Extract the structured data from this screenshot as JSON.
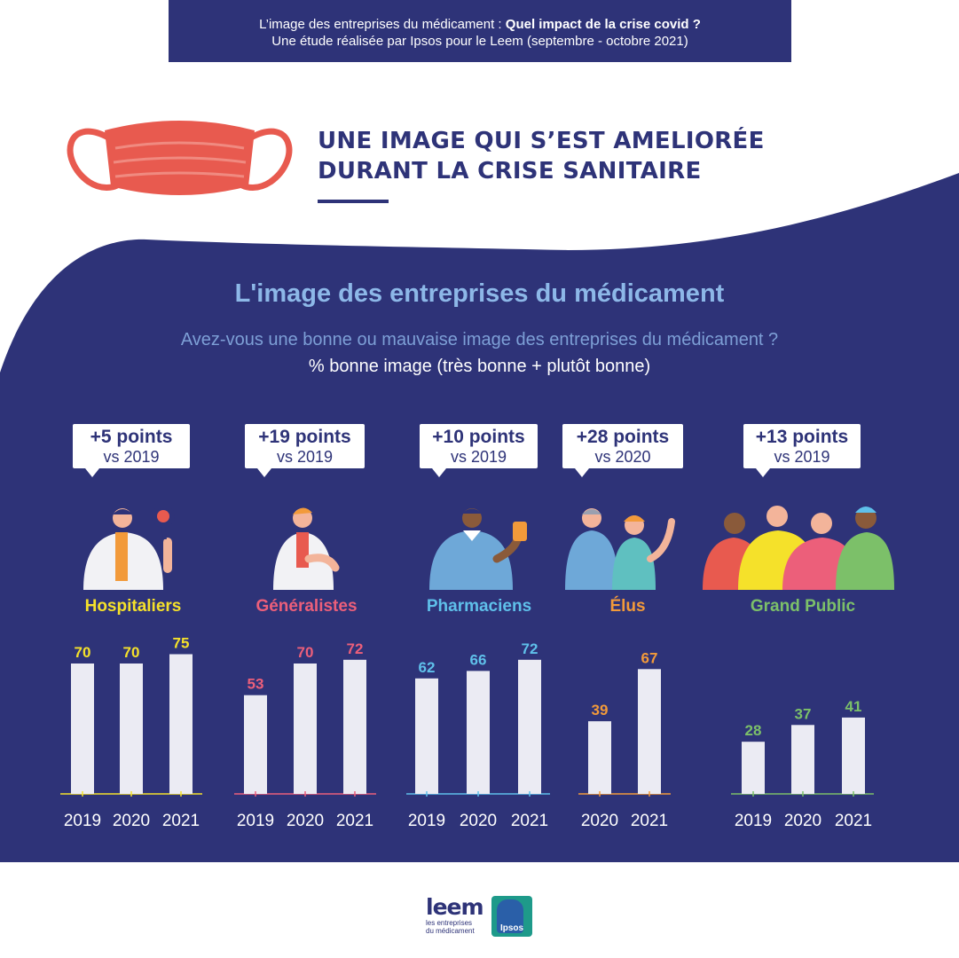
{
  "header": {
    "line1_prefix": "L’image des entreprises du médicament : ",
    "line1_bold": "Quel impact de la crise covid ?",
    "line2": "Une étude réalisée par Ipsos pour le Leem (septembre - octobre 2021)"
  },
  "headline": {
    "line1": "UNE IMAGE QUI S’EST AMELIORÉE",
    "line2": "DURANT LA CRISE SANITAIRE"
  },
  "main": {
    "title": "L'image des entreprises du médicament",
    "question": "Avez-vous une bonne ou mauvaise image des entreprises du médicament ?",
    "subtitle": "% bonne image (très bonne + plutôt bonne)"
  },
  "colors": {
    "navy": "#2e3378",
    "mask": "#e85a4f",
    "hospitaliers": "#f5e12a",
    "generalistes": "#ec5f7a",
    "pharmaciens": "#5fc0ea",
    "elus": "#f29a3a",
    "grand_public": "#7cc069"
  },
  "groups": [
    {
      "key": "hospitaliers",
      "label": "Hospitaliers",
      "delta": "+5 points",
      "vs": "vs 2019",
      "color": "#f5e12a",
      "icon": "doctor-magnifier-icon"
    },
    {
      "key": "generalistes",
      "label": "Généralistes",
      "delta": "+19 points",
      "vs": "vs 2019",
      "color": "#ec5f7a",
      "icon": "general-practitioner-icon"
    },
    {
      "key": "pharmaciens",
      "label": "Pharmaciens",
      "delta": "+10 points",
      "vs": "vs 2019",
      "color": "#5fc0ea",
      "icon": "pharmacist-icon"
    },
    {
      "key": "elus",
      "label": "Élus",
      "delta": "+28 points",
      "vs": "vs 2020",
      "color": "#f29a3a",
      "icon": "elected-officials-icon"
    },
    {
      "key": "grand_public",
      "label": "Grand Public",
      "delta": "+13 points",
      "vs": "vs 2019",
      "color": "#7cc069",
      "icon": "general-public-crowd-icon"
    }
  ],
  "chart_data": {
    "type": "bar",
    "title": "L'image des entreprises du médicament",
    "ylabel": "",
    "ylim": [
      0,
      100
    ],
    "grid": false,
    "groups": [
      {
        "name": "Hospitaliers",
        "categories": [
          "2019",
          "2020",
          "2021"
        ],
        "values": [
          70,
          70,
          75
        ]
      },
      {
        "name": "Généralistes",
        "categories": [
          "2019",
          "2020",
          "2021"
        ],
        "values": [
          53,
          70,
          72
        ]
      },
      {
        "name": "Pharmaciens",
        "categories": [
          "2019",
          "2020",
          "2021"
        ],
        "values": [
          62,
          66,
          72
        ]
      },
      {
        "name": "Élus",
        "categories": [
          "2020",
          "2021"
        ],
        "values": [
          39,
          67
        ]
      },
      {
        "name": "Grand Public",
        "categories": [
          "2019",
          "2020",
          "2021"
        ],
        "values": [
          28,
          37,
          41
        ]
      }
    ]
  },
  "logos": {
    "leem_name": "leem",
    "leem_tagline_1": "les entreprises",
    "leem_tagline_2": "du médicament",
    "ipsos_name": "Ipsos"
  }
}
